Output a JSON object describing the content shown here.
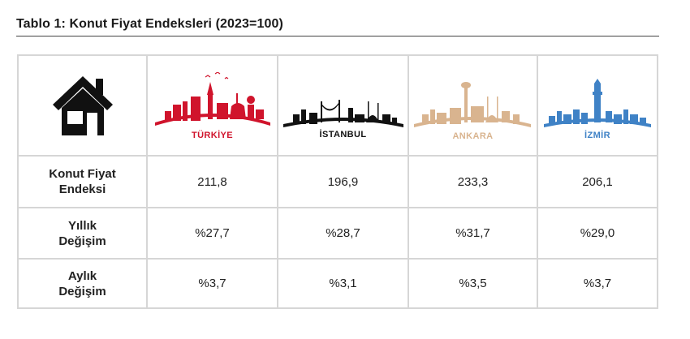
{
  "title": "Tablo 1: Konut Fiyat Endeksleri (2023=100)",
  "header": {
    "icon": "house-icon",
    "columns": [
      {
        "name": "TÜRKİYE",
        "color": "#d0142c",
        "skyline": "turkiye-skyline-icon"
      },
      {
        "name": "İSTANBUL",
        "color": "#111111",
        "skyline": "istanbul-skyline-icon"
      },
      {
        "name": "ANKARA",
        "color": "#d9b48f",
        "skyline": "ankara-skyline-icon"
      },
      {
        "name": "İZMİR",
        "color": "#3f82c6",
        "skyline": "izmir-skyline-icon"
      }
    ]
  },
  "rows": [
    {
      "label_line1": "Konut Fiyat",
      "label_line2": "Endeksi",
      "values": [
        "211,8",
        "196,9",
        "233,3",
        "206,1"
      ]
    },
    {
      "label_line1": "Yıllık",
      "label_line2": "Değişim",
      "values": [
        "%27,7",
        "%28,7",
        "%31,7",
        "%29,0"
      ]
    },
    {
      "label_line1": "Aylık",
      "label_line2": "Değişim",
      "values": [
        "%3,7",
        "%3,1",
        "%3,5",
        "%3,7"
      ]
    }
  ]
}
